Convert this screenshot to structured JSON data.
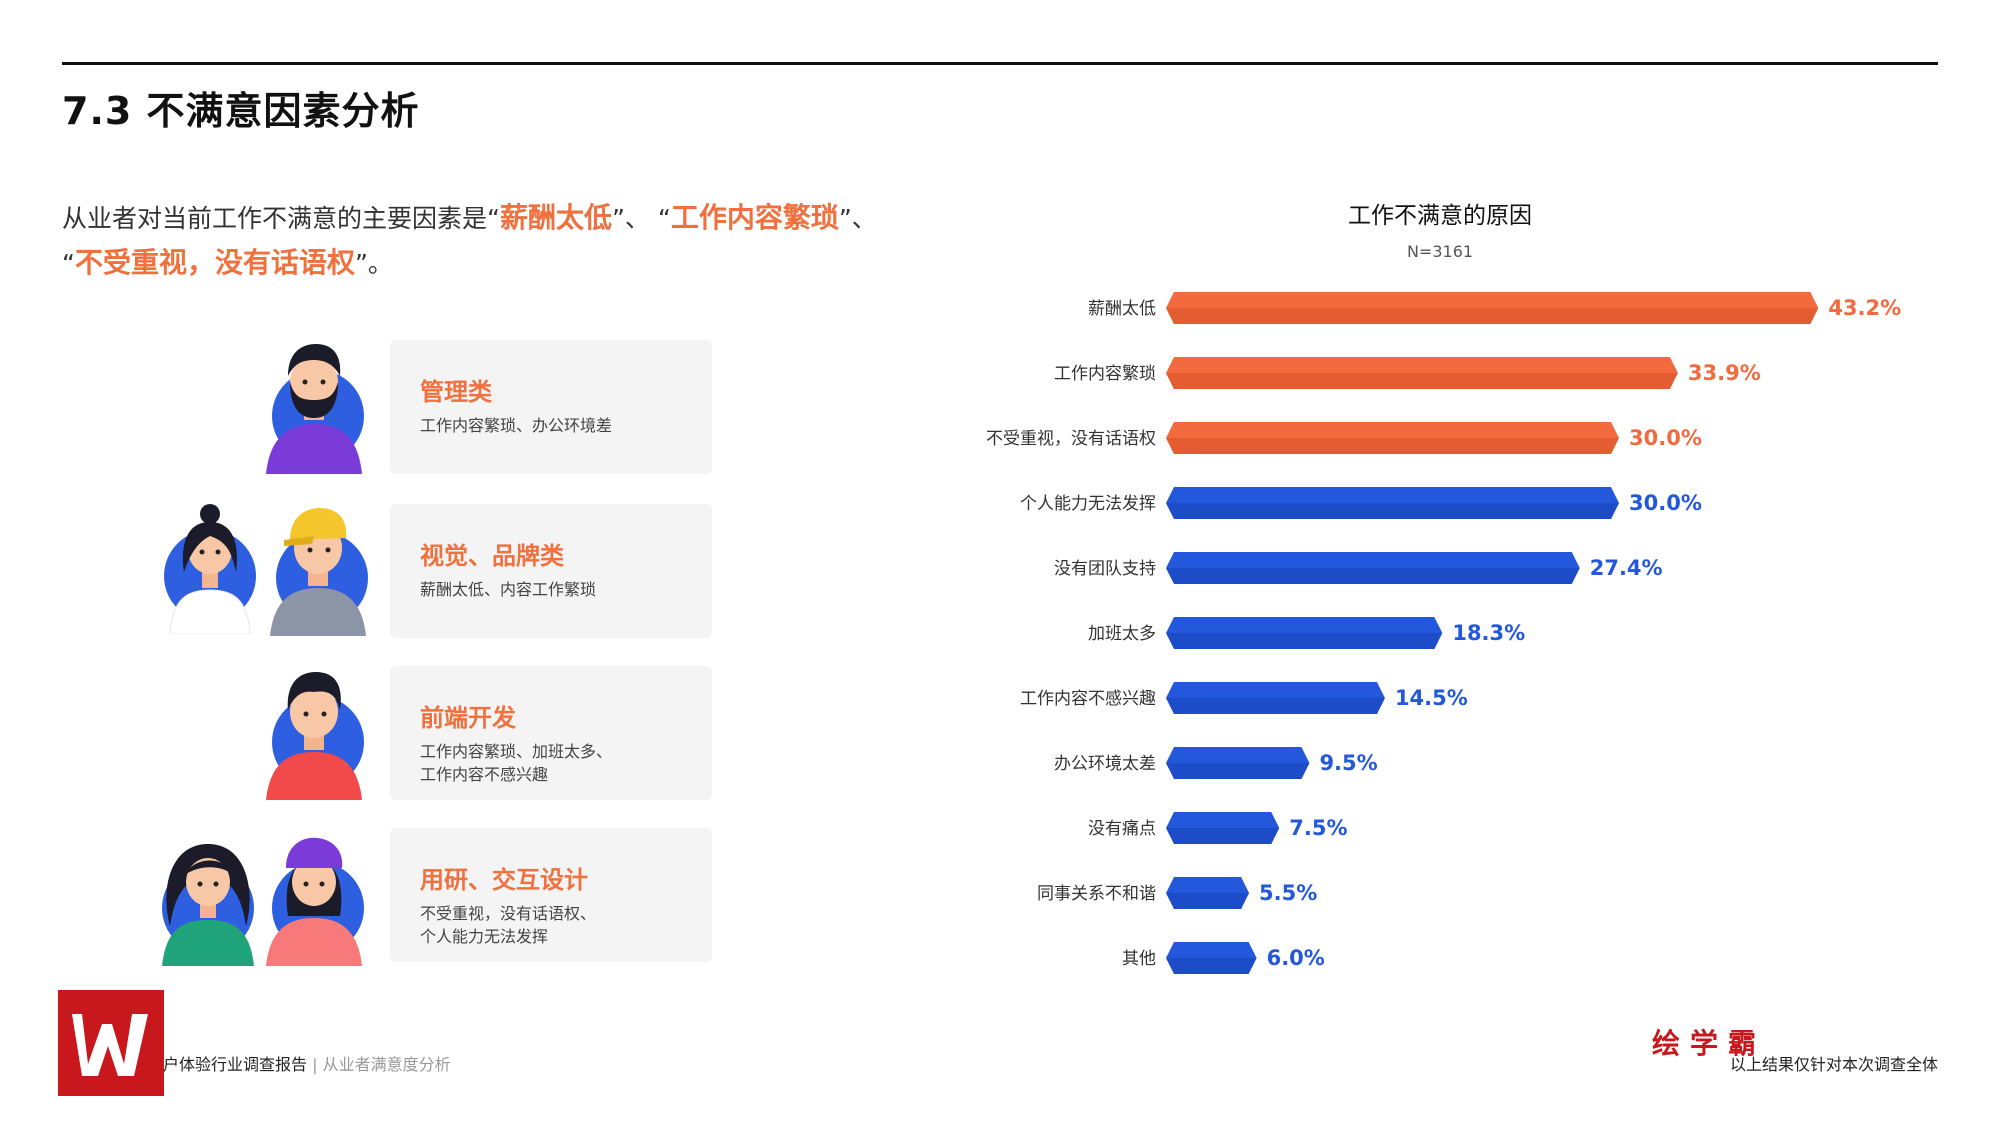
{
  "header": {
    "title": "7.3 不满意因素分析"
  },
  "summary": {
    "prefix": "从业者对当前工作不满意的主要因素是",
    "q1_open": "“",
    "item1": "薪酬太低",
    "q1_close": "”、",
    "q2_open": "“",
    "item2": "工作内容繁琐",
    "q2_close": "”、",
    "q3_open": "“",
    "item3": "不受重视，没有话语权",
    "q3_close": "”。"
  },
  "roles": [
    {
      "title": "管理类",
      "desc": "工作内容繁琐、办公环境差"
    },
    {
      "title": "视觉、品牌类",
      "desc": "薪酬太低、内容工作繁琐"
    },
    {
      "title": "前端开发",
      "desc": "工作内容繁琐、加班太多、\n工作内容不感兴趣"
    },
    {
      "title": "用研、交互设计",
      "desc": "不受重视，没有话语权、\n个人能力无法发挥"
    }
  ],
  "chart_data": {
    "type": "bar",
    "orientation": "horizontal",
    "title": "工作不满意的原因",
    "subtitle": "N=3161",
    "categories": [
      "薪酬太低",
      "工作内容繁琐",
      "不受重视，没有话语权",
      "个人能力无法发挥",
      "没有团队支持",
      "加班太多",
      "工作内容不感兴趣",
      "办公环境太差",
      "没有痛点",
      "同事关系不和谐",
      "其他"
    ],
    "values": [
      43.2,
      33.9,
      30.0,
      30.0,
      27.4,
      18.3,
      14.5,
      9.5,
      7.5,
      5.5,
      6.0
    ],
    "value_labels": [
      "43.2%",
      "33.9%",
      "30.0%",
      "30.0%",
      "27.4%",
      "18.3%",
      "14.5%",
      "9.5%",
      "7.5%",
      "5.5%",
      "6.0%"
    ],
    "highlight_count": 3,
    "colors": {
      "highlight": "#f26a3d",
      "highlight_dark": "#d9512a",
      "normal": "#2358dc",
      "normal_dark": "#1843b8"
    }
  },
  "footer": {
    "report": "户体验行业调查报告",
    "separator": "|",
    "section": "从业者满意度分析",
    "brand": "绘学霸",
    "note": "以上结果仅针对本次调查全体"
  }
}
